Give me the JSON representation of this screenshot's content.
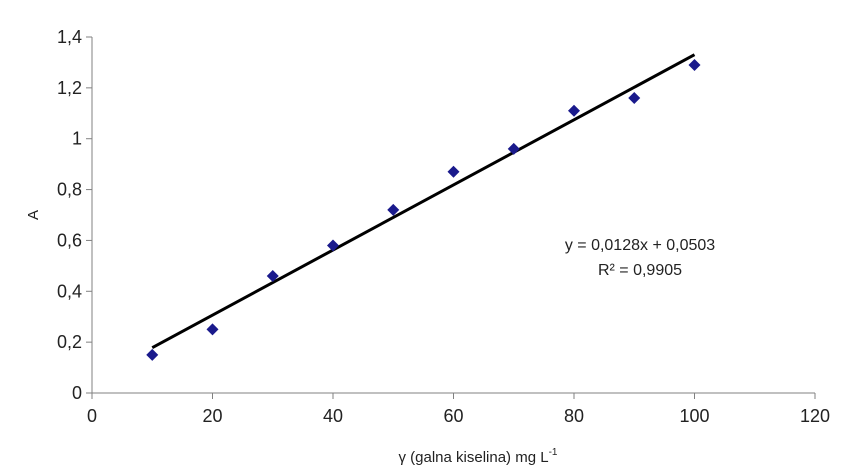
{
  "chart_data": {
    "type": "scatter",
    "xlabel": "γ (galna kiselina) mg L",
    "xlabel_superscript": "-1",
    "ylabel": "A",
    "xlim": [
      0,
      120
    ],
    "ylim": [
      0,
      1.4
    ],
    "x_ticks": [
      "0",
      "20",
      "40",
      "60",
      "80",
      "100",
      "120"
    ],
    "y_ticks": [
      "0",
      "0,2",
      "0,4",
      "0,6",
      "0,8",
      "1",
      "1,2",
      "1,4"
    ],
    "grid": false,
    "series": [
      {
        "points": [
          {
            "x": 10,
            "y": 0.15
          },
          {
            "x": 20,
            "y": 0.25
          },
          {
            "x": 30,
            "y": 0.46
          },
          {
            "x": 40,
            "y": 0.58
          },
          {
            "x": 50,
            "y": 0.72
          },
          {
            "x": 60,
            "y": 0.87
          },
          {
            "x": 70,
            "y": 0.96
          },
          {
            "x": 80,
            "y": 1.11
          },
          {
            "x": 90,
            "y": 1.16
          },
          {
            "x": 100,
            "y": 1.29
          }
        ],
        "marker_color": "#1a1a8c"
      }
    ],
    "trendline": {
      "slope": 0.0128,
      "intercept": 0.0503,
      "x_range": [
        10,
        100
      ],
      "color": "#000000",
      "equation_text": "y = 0,0128x + 0,0503",
      "r2_text": "R² = 0,9905"
    }
  }
}
